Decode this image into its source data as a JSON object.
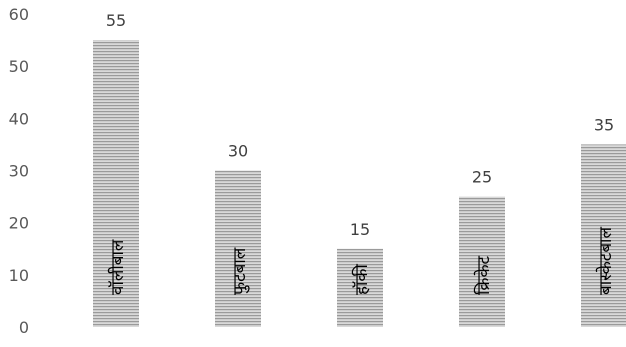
{
  "chart_data": {
    "type": "bar",
    "categories": [
      "वॉलीबाल",
      "फुटबाल",
      "हॉकी",
      "क्रिकेट",
      "बास्केटबाल"
    ],
    "values": [
      55,
      30,
      15,
      25,
      35
    ],
    "ylim": [
      0,
      60
    ],
    "yticks": [
      0,
      10,
      20,
      30,
      40,
      50,
      60
    ],
    "grid": false,
    "legend": "none",
    "bar_pattern": "horizontal-stripes",
    "colors": {
      "bar_light": "#d9d9d9",
      "bar_dark": "#9a9a9a",
      "tick": "#595959",
      "label": "#404040"
    }
  }
}
